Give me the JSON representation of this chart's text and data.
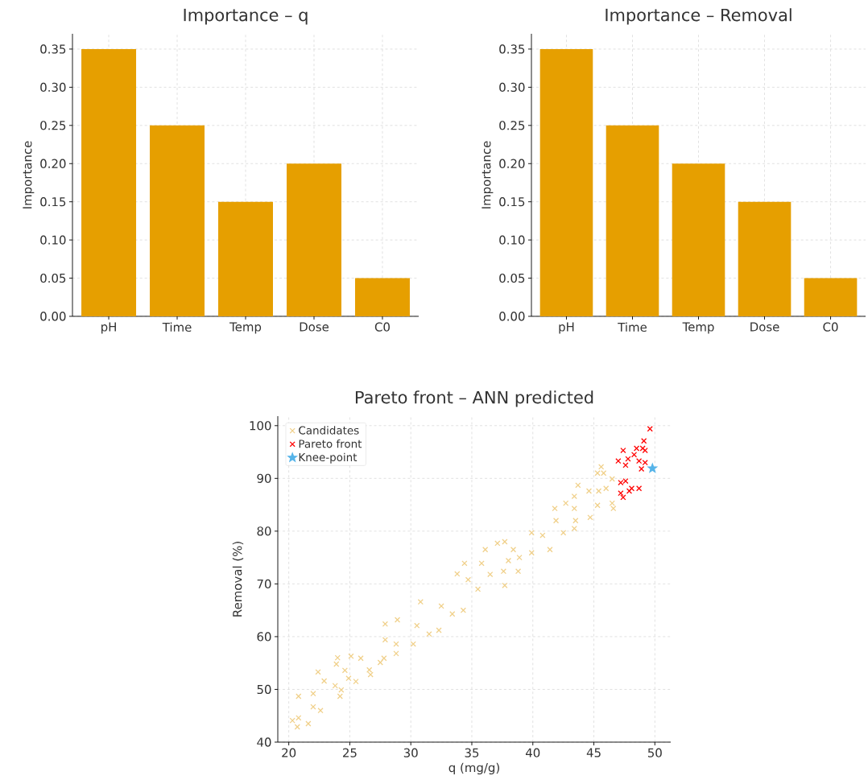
{
  "chart_data": [
    {
      "type": "bar",
      "title": "Importance – q",
      "ylabel": "Importance",
      "categories": [
        "pH",
        "Time",
        "Temp",
        "Dose",
        "C0"
      ],
      "values": [
        0.35,
        0.25,
        0.15,
        0.2,
        0.05
      ],
      "color": "#e69f00",
      "ylim": [
        0,
        0.37
      ],
      "yticks": [
        {
          "value": 0,
          "label": "0.00"
        },
        {
          "value": 0.05,
          "label": "0.05"
        },
        {
          "value": 0.1,
          "label": "0.10"
        },
        {
          "value": 0.15,
          "label": "0.15"
        },
        {
          "value": 0.2,
          "label": "0.20"
        },
        {
          "value": 0.25,
          "label": "0.25"
        },
        {
          "value": 0.3,
          "label": "0.30"
        },
        {
          "value": 0.35,
          "label": "0.35"
        }
      ],
      "grid": true
    },
    {
      "type": "bar",
      "title": "Importance – Removal",
      "ylabel": "Importance",
      "categories": [
        "pH",
        "Time",
        "Temp",
        "Dose",
        "C0"
      ],
      "values": [
        0.35,
        0.25,
        0.2,
        0.15,
        0.05
      ],
      "color": "#e69f00",
      "ylim": [
        0,
        0.37
      ],
      "yticks": [
        {
          "value": 0,
          "label": "0.00"
        },
        {
          "value": 0.05,
          "label": "0.05"
        },
        {
          "value": 0.1,
          "label": "0.10"
        },
        {
          "value": 0.15,
          "label": "0.15"
        },
        {
          "value": 0.2,
          "label": "0.20"
        },
        {
          "value": 0.25,
          "label": "0.25"
        },
        {
          "value": 0.3,
          "label": "0.30"
        },
        {
          "value": 0.35,
          "label": "0.35"
        }
      ],
      "grid": true
    },
    {
      "type": "scatter",
      "title": "Pareto front – ANN predicted",
      "xlabel": "q (mg/g)",
      "ylabel": "Removal (%)",
      "xlim": [
        19.1,
        51.3
      ],
      "ylim": [
        40,
        101.8
      ],
      "xticks": [
        20,
        25,
        30,
        35,
        40,
        45,
        50
      ],
      "yticks": [
        40,
        50,
        60,
        70,
        80,
        90,
        100
      ],
      "grid": true,
      "legend": "top left",
      "series": [
        {
          "name": "Candidates",
          "color": "#f0d08a",
          "marker": "cross",
          "x": [
            20.3,
            20.7,
            20.8,
            20.8,
            21.6,
            22.0,
            22.0,
            22.6,
            22.4,
            22.9,
            23.8,
            23.9,
            24.0,
            24.2,
            24.3,
            24.6,
            24.9,
            25.1,
            25.5,
            25.9,
            26.6,
            26.7,
            27.5,
            27.8,
            27.9,
            27.9,
            28.8,
            28.9,
            28.8,
            30.2,
            30.5,
            30.8,
            31.5,
            32.3,
            32.5,
            33.4,
            33.8,
            34.3,
            34.7,
            34.4,
            35.8,
            36.1,
            37.1,
            37.7,
            38.4,
            38.9,
            37.6,
            38.8,
            38.0,
            39.9,
            40.8,
            41.4,
            39.9,
            41.8,
            41.9,
            42.5,
            42.7,
            43.4,
            43.7,
            43.4,
            43.5,
            43.4,
            44.6,
            44.7,
            45.3,
            45.4,
            45.8,
            46.0,
            45.3,
            46.5,
            46.5,
            46.6,
            45.6,
            35.5,
            37.7,
            36.5
          ],
          "values": [
            44.1,
            42.9,
            44.6,
            48.7,
            43.5,
            49.2,
            46.7,
            46.0,
            53.3,
            51.6,
            50.7,
            54.8,
            56.0,
            48.7,
            49.9,
            53.6,
            52.1,
            56.3,
            51.5,
            55.9,
            53.7,
            52.8,
            55.1,
            55.9,
            59.4,
            62.4,
            58.6,
            63.2,
            56.8,
            58.6,
            62.1,
            66.6,
            60.5,
            61.2,
            65.8,
            64.3,
            71.9,
            65.0,
            70.8,
            73.9,
            73.9,
            76.5,
            77.7,
            78.0,
            76.5,
            75.0,
            72.4,
            72.4,
            74.4,
            79.7,
            79.2,
            76.5,
            75.9,
            84.3,
            82.0,
            79.7,
            85.3,
            86.6,
            88.7,
            84.3,
            82.0,
            80.5,
            87.6,
            82.6,
            91.0,
            87.6,
            91.0,
            88.1,
            84.9,
            89.9,
            85.3,
            84.3,
            92.2,
            69.0,
            69.7,
            71.8
          ]
        },
        {
          "name": "Pareto front",
          "color": "#ff0000",
          "marker": "cross",
          "x": [
            49.6,
            49.1,
            49.0,
            48.5,
            47.4,
            48.3,
            47.8,
            47.0,
            47.6,
            48.9,
            49.2,
            48.7,
            49.2,
            47.2,
            47.6,
            47.2,
            47.9,
            48.1,
            48.7,
            47.4
          ],
          "values": [
            99.4,
            97.1,
            95.7,
            95.7,
            95.3,
            94.5,
            93.7,
            93.3,
            92.5,
            91.8,
            93.0,
            93.3,
            95.3,
            89.2,
            89.5,
            87.2,
            87.6,
            88.1,
            88.1,
            86.4
          ]
        },
        {
          "name": "Knee-point",
          "color": "#56b4e9",
          "marker": "star",
          "x": [
            49.8
          ],
          "values": [
            91.9
          ]
        }
      ]
    }
  ]
}
